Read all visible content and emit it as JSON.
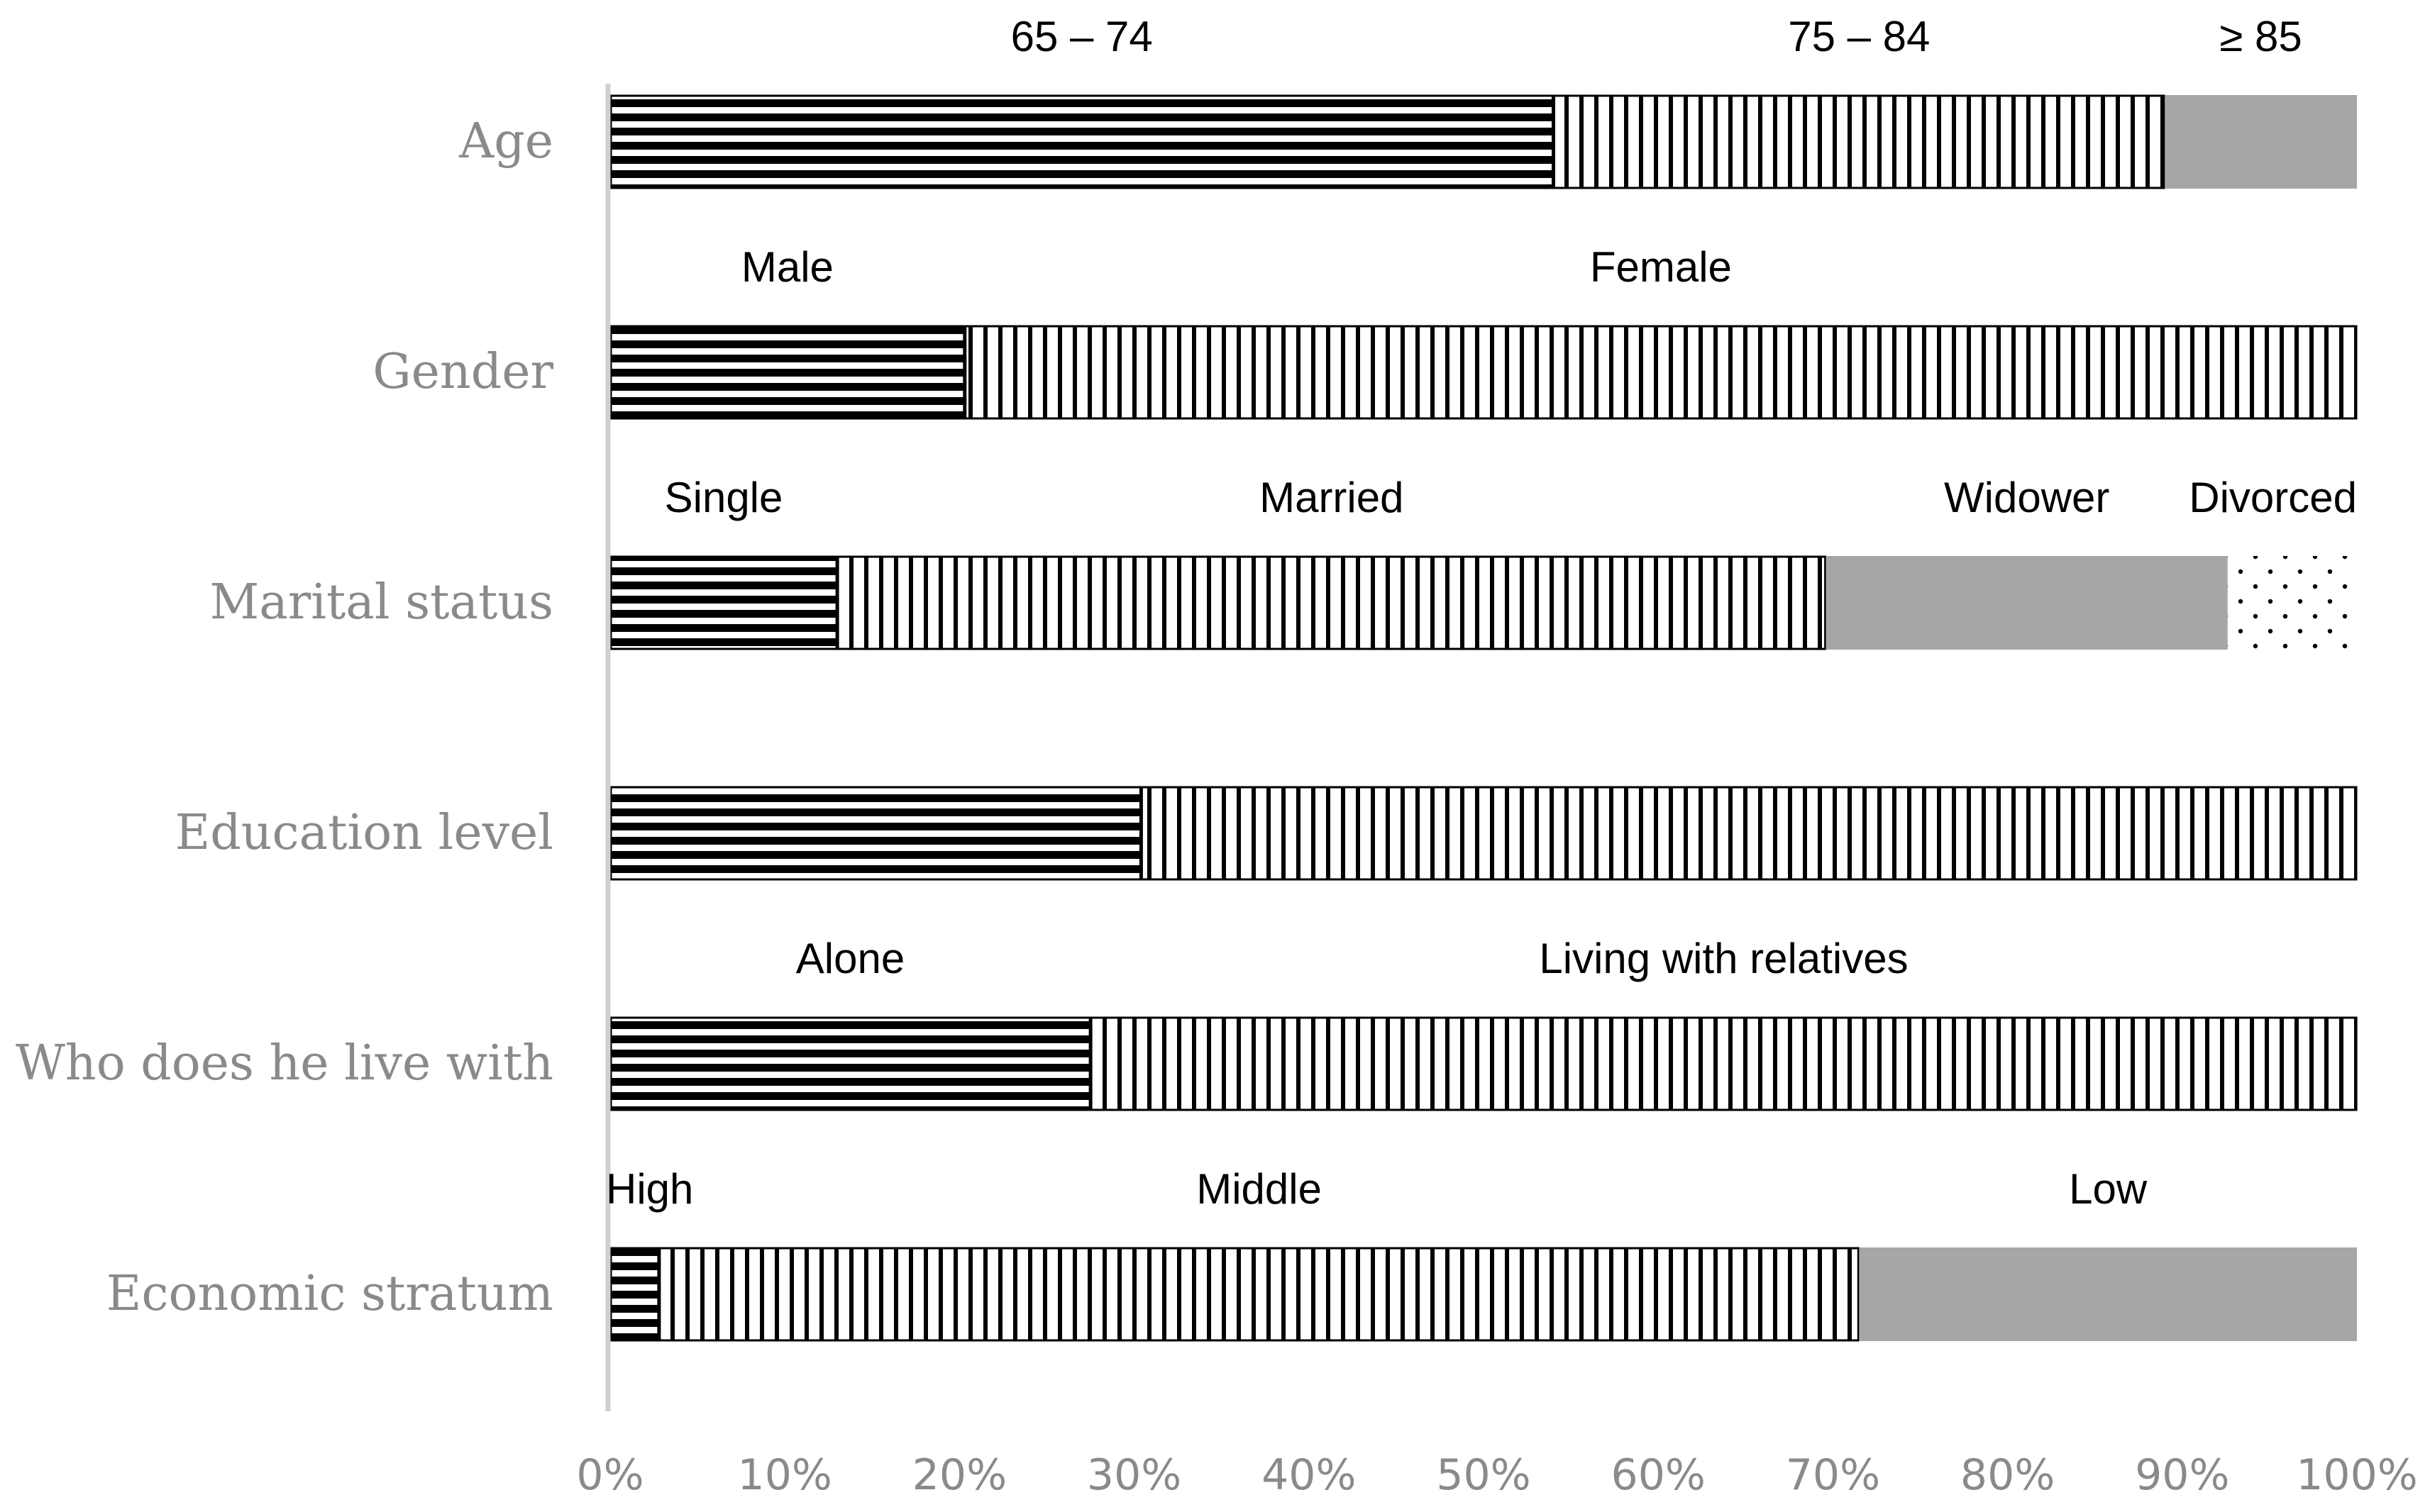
{
  "chart_data": {
    "type": "bar",
    "orientation": "horizontal",
    "stacked": true,
    "title": "",
    "xlabel": "",
    "ylabel": "",
    "xlim": [
      0,
      100
    ],
    "x_ticks": [
      "0%",
      "10%",
      "20%",
      "30%",
      "40%",
      "50%",
      "60%",
      "70%",
      "80%",
      "90%",
      "100%"
    ],
    "grid": false,
    "legend": "none",
    "categories": [
      {
        "name": "Age",
        "segments": [
          {
            "label": "65 – 74",
            "value": 54,
            "pattern": "hstripe"
          },
          {
            "label": "75 – 84",
            "value": 35,
            "pattern": "vstripe"
          },
          {
            "label": "≥ 85",
            "value": 11,
            "pattern": "gray"
          }
        ]
      },
      {
        "name": "Gender",
        "segments": [
          {
            "label": "Male",
            "value": 20.3,
            "pattern": "hstripe"
          },
          {
            "label": "Female",
            "value": 79.7,
            "pattern": "vstripe"
          }
        ]
      },
      {
        "name": "Marital status",
        "segments": [
          {
            "label": "Single",
            "value": 13,
            "pattern": "hstripe"
          },
          {
            "label": "Married",
            "value": 56.6,
            "pattern": "vstripe"
          },
          {
            "label": "Widower",
            "value": 23,
            "pattern": "gray"
          },
          {
            "label": "Divorced",
            "value": 7.4,
            "pattern": "dots"
          }
        ]
      },
      {
        "name": "Education level",
        "segments": [
          {
            "label": "",
            "value": 30.4,
            "pattern": "hstripe"
          },
          {
            "label": "",
            "value": 69.6,
            "pattern": "vstripe"
          }
        ]
      },
      {
        "name": "Who does he live with",
        "segments": [
          {
            "label": "Alone",
            "value": 27.5,
            "pattern": "hstripe"
          },
          {
            "label": "Living with relatives",
            "value": 72.5,
            "pattern": "vstripe"
          }
        ]
      },
      {
        "name": "Economic stratum",
        "segments": [
          {
            "label": "High",
            "value": 2.8,
            "pattern": "hstripe"
          },
          {
            "label": "Middle",
            "value": 68.7,
            "pattern": "vstripe"
          },
          {
            "label": "Low",
            "value": 28.5,
            "pattern": "gray"
          }
        ]
      }
    ]
  }
}
